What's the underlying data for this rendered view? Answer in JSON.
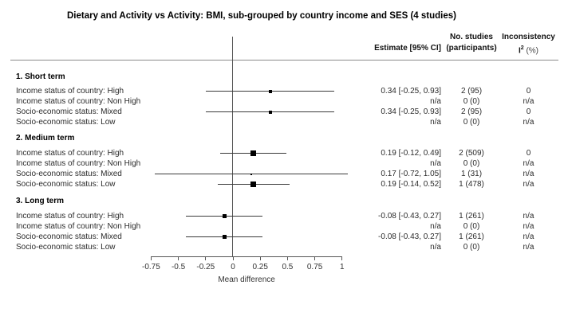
{
  "columns": {
    "estimate": "Estimate [95% CI]",
    "n_studies_line1": "No. studies",
    "n_studies_line2": "(participants)",
    "inconsistency_line1": "Inconsistency",
    "i2_base": "I",
    "i2_sup": "2",
    "i2_pct": " (%)"
  },
  "chart_data": {
    "type": "forest",
    "title": "Dietary and Activity vs Activity: BMI, sub-grouped by country income and SES (4 studies)",
    "xlabel": "Mean difference",
    "xlim": [
      -0.75,
      1
    ],
    "xticks": [
      -0.75,
      -0.5,
      -0.25,
      0,
      0.25,
      0.5,
      0.75,
      1
    ],
    "grid": false,
    "legend": false,
    "groups": [
      {
        "name": "1. Short term",
        "rows": [
          {
            "label": "Income status of country: High",
            "estimate": 0.34,
            "ci": [
              -0.25,
              0.93
            ],
            "weight": 4,
            "estimate_text": "0.34 [-0.25, 0.93]",
            "n_studies": "2 (95)",
            "inconsistency": "0"
          },
          {
            "label": "Income status of country: Non High",
            "estimate": null,
            "ci": null,
            "weight": 0,
            "estimate_text": "n/a",
            "n_studies": "0 (0)",
            "inconsistency": "n/a"
          },
          {
            "label": "Socio-economic status: Mixed",
            "estimate": 0.34,
            "ci": [
              -0.25,
              0.93
            ],
            "weight": 4,
            "estimate_text": "0.34 [-0.25, 0.93]",
            "n_studies": "2 (95)",
            "inconsistency": "0"
          },
          {
            "label": "Socio-economic status: Low",
            "estimate": null,
            "ci": null,
            "weight": 0,
            "estimate_text": "n/a",
            "n_studies": "0 (0)",
            "inconsistency": "n/a"
          }
        ]
      },
      {
        "name": "2. Medium term",
        "rows": [
          {
            "label": "Income status of country: High",
            "estimate": 0.19,
            "ci": [
              -0.12,
              0.49
            ],
            "weight": 7,
            "estimate_text": "0.19 [-0.12, 0.49]",
            "n_studies": "2 (509)",
            "inconsistency": "0"
          },
          {
            "label": "Income status of country: Non High",
            "estimate": null,
            "ci": null,
            "weight": 0,
            "estimate_text": "n/a",
            "n_studies": "0 (0)",
            "inconsistency": "n/a"
          },
          {
            "label": "Socio-economic status: Mixed",
            "estimate": 0.17,
            "ci": [
              -0.72,
              1.05
            ],
            "weight": 2,
            "estimate_text": "0.17 [-0.72, 1.05]",
            "n_studies": "1 (31)",
            "inconsistency": "n/a"
          },
          {
            "label": "Socio-economic status: Low",
            "estimate": 0.19,
            "ci": [
              -0.14,
              0.52
            ],
            "weight": 7,
            "estimate_text": "0.19 [-0.14, 0.52]",
            "n_studies": "1 (478)",
            "inconsistency": "n/a"
          }
        ]
      },
      {
        "name": "3. Long term",
        "rows": [
          {
            "label": "Income status of country: High",
            "estimate": -0.08,
            "ci": [
              -0.43,
              0.27
            ],
            "weight": 5,
            "estimate_text": "-0.08 [-0.43, 0.27]",
            "n_studies": "1 (261)",
            "inconsistency": "n/a"
          },
          {
            "label": "Income status of country: Non High",
            "estimate": null,
            "ci": null,
            "weight": 0,
            "estimate_text": "n/a",
            "n_studies": "0 (0)",
            "inconsistency": "n/a"
          },
          {
            "label": "Socio-economic status: Mixed",
            "estimate": -0.08,
            "ci": [
              -0.43,
              0.27
            ],
            "weight": 5,
            "estimate_text": "-0.08 [-0.43, 0.27]",
            "n_studies": "1 (261)",
            "inconsistency": "n/a"
          },
          {
            "label": "Socio-economic status: Low",
            "estimate": null,
            "ci": null,
            "weight": 0,
            "estimate_text": "n/a",
            "n_studies": "0 (0)",
            "inconsistency": "n/a"
          }
        ]
      }
    ]
  }
}
